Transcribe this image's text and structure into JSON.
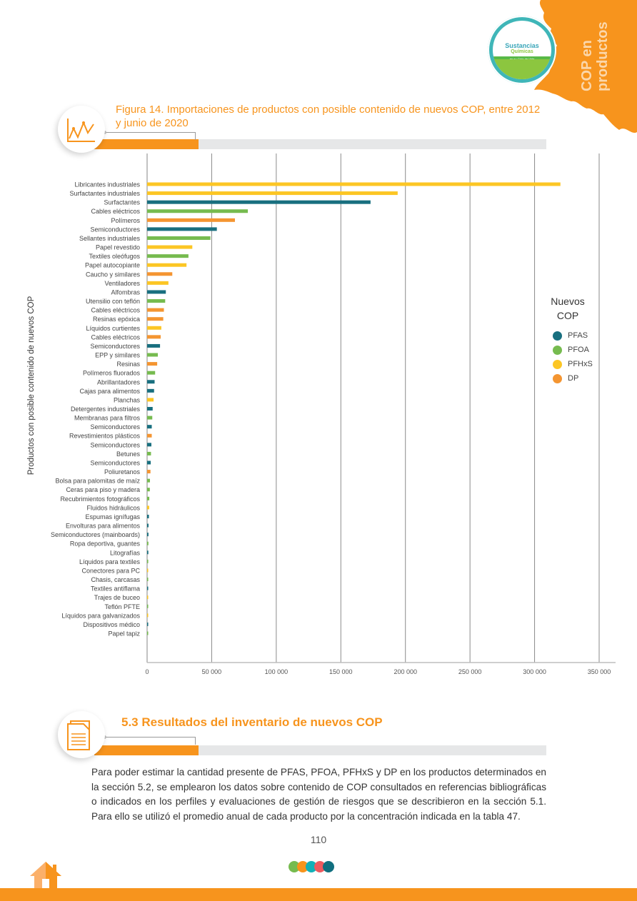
{
  "header": {
    "side_title_line1": "COP en",
    "side_title_line2": "productos",
    "logo_text_1": "Sustancias",
    "logo_text_2": "Químicas",
    "logo_band": "en su Ciclo de Vida"
  },
  "figure": {
    "title_line1": "Figura 14. Importaciones de productos con posible contenido de nuevos COP, entre 2012",
    "title_line2": "y junio de 2020",
    "icon": "line-chart-icon"
  },
  "colors": {
    "PFAS": "#186f7f",
    "PFOA": "#76bb4f",
    "PFHxS": "#fcc624",
    "DP": "#f49531",
    "accent": "#f7941d"
  },
  "chart_data": {
    "type": "bar",
    "orientation": "horizontal",
    "title": "Figura 14. Importaciones de productos con posible contenido de nuevos COP, entre 2012 y junio de 2020",
    "xlabel": "",
    "ylabel": "Productos con posible contenido de nuevos COP",
    "xlim": [
      0,
      350000
    ],
    "xticks": [
      0,
      50000,
      100000,
      150000,
      200000,
      250000,
      300000,
      350000
    ],
    "xtick_labels": [
      "0",
      "50 000",
      "100 000",
      "150 000",
      "200 000",
      "250 000",
      "300 000",
      "350 000"
    ],
    "grid": true,
    "legend_title": "Nuevos COP",
    "legend_position": "right",
    "legend": [
      "PFAS",
      "PFOA",
      "PFHxS",
      "DP"
    ],
    "bars": [
      {
        "label": "Libricantes industriales",
        "group": "PFHxS",
        "value": 320000
      },
      {
        "label": "Surfactantes industriales",
        "group": "PFHxS",
        "value": 194000
      },
      {
        "label": "Surfactantes",
        "group": "PFAS",
        "value": 173000
      },
      {
        "label": "Cables eléctricos",
        "group": "PFOA",
        "value": 78000
      },
      {
        "label": "Polímeros",
        "group": "DP",
        "value": 68000
      },
      {
        "label": "Semiconductores",
        "group": "PFAS",
        "value": 54000
      },
      {
        "label": "Sellantes industriales",
        "group": "PFOA",
        "value": 49000
      },
      {
        "label": "Papel revestido",
        "group": "PFHxS",
        "value": 35000
      },
      {
        "label": "Textiles oleófugos",
        "group": "PFOA",
        "value": 32000
      },
      {
        "label": "Papel autocopiante",
        "group": "PFHxS",
        "value": 30500
      },
      {
        "label": "Caucho y similares",
        "group": "DP",
        "value": 19500
      },
      {
        "label": "Ventiladores",
        "group": "PFHxS",
        "value": 16500
      },
      {
        "label": "Alfombras",
        "group": "PFAS",
        "value": 14500
      },
      {
        "label": "Utensilio con teflón",
        "group": "PFOA",
        "value": 14000
      },
      {
        "label": "Cables eléctricos",
        "group": "DP",
        "value": 13000
      },
      {
        "label": "Resinas epóxica",
        "group": "DP",
        "value": 12500
      },
      {
        "label": "Líquidos curtientes",
        "group": "PFHxS",
        "value": 11000
      },
      {
        "label": "Cables eléctricos",
        "group": "DP",
        "value": 10500
      },
      {
        "label": "Semiconductores",
        "group": "PFAS",
        "value": 10000
      },
      {
        "label": "EPP y similares",
        "group": "PFOA",
        "value": 8300
      },
      {
        "label": "Resinas",
        "group": "DP",
        "value": 7800
      },
      {
        "label": "Polímeros fluorados",
        "group": "PFOA",
        "value": 6200
      },
      {
        "label": "Abrillantadores",
        "group": "PFAS",
        "value": 5800
      },
      {
        "label": "Cajas para alimentos",
        "group": "PFAS",
        "value": 5400
      },
      {
        "label": "Planchas",
        "group": "PFHxS",
        "value": 5000
      },
      {
        "label": "Detergentes industriales",
        "group": "PFAS",
        "value": 4300
      },
      {
        "label": "Membranas para filtros",
        "group": "PFOA",
        "value": 4000
      },
      {
        "label": "Semiconductores",
        "group": "PFAS",
        "value": 3600
      },
      {
        "label": "Revestimientos plásticos",
        "group": "DP",
        "value": 3600
      },
      {
        "label": "Semiconductores",
        "group": "PFAS",
        "value": 3300
      },
      {
        "label": "Betunes",
        "group": "PFOA",
        "value": 3000
      },
      {
        "label": "Semiconductores",
        "group": "PFAS",
        "value": 2800
      },
      {
        "label": "Poliuretanos",
        "group": "DP",
        "value": 2600
      },
      {
        "label": "Bolsa para palomitas de maíz",
        "group": "PFOA",
        "value": 2200
      },
      {
        "label": "Ceras para piso y madera",
        "group": "PFOA",
        "value": 2100
      },
      {
        "label": "Recubrimientos fotográficos",
        "group": "PFOA",
        "value": 1700
      },
      {
        "label": "Fluidos hidráulicos",
        "group": "PFHxS",
        "value": 1600
      },
      {
        "label": "Espumas ignífugas",
        "group": "PFAS",
        "value": 1400
      },
      {
        "label": "Envolturas para alimentos",
        "group": "PFAS",
        "value": 1100
      },
      {
        "label": "Semiconductores (mainboards)",
        "group": "PFAS",
        "value": 1050
      },
      {
        "label": "Ropa deportiva, guantes",
        "group": "PFOA",
        "value": 1000
      },
      {
        "label": "Litografías",
        "group": "PFAS",
        "value": 950
      },
      {
        "label": "Líquidos para textiles",
        "group": "PFOA",
        "value": 850
      },
      {
        "label": "Conectores para PC",
        "group": "PFHxS",
        "value": 800
      },
      {
        "label": "Chasis, carcasas",
        "group": "PFOA",
        "value": 780
      },
      {
        "label": "Textiles antiflama",
        "group": "PFAS",
        "value": 750
      },
      {
        "label": "Trajes de buceo",
        "group": "PFHxS",
        "value": 700
      },
      {
        "label": "Teflón PFTE",
        "group": "PFOA",
        "value": 680
      },
      {
        "label": "Líquidos para galvanizados",
        "group": "PFHxS",
        "value": 650
      },
      {
        "label": "Dispositivos médico",
        "group": "PFAS",
        "value": 620
      },
      {
        "label": "Papel tapiz",
        "group": "PFOA",
        "value": 600
      }
    ]
  },
  "section": {
    "title": "5.3 Resultados del inventario de nuevos COP",
    "icon": "document-icon",
    "paragraph": "Para poder estimar la cantidad presente de PFAS, PFOA, PFHxS y DP en los productos determinados en la sección 5.2, se emplearon los datos sobre contenido de COP consultados en referencias bibliográficas o indicados en los perfiles y evaluaciones de gestión de riesgos que se describieron en la sección 5.1. Para ello se utilizó el promedio anual de cada producto por la concentración indicada en la tabla 47."
  },
  "footer": {
    "page_number": "110",
    "dot_colors": [
      "#76bb4f",
      "#f7941d",
      "#12b0b8",
      "#ee5a5f",
      "#106f7f"
    ]
  }
}
